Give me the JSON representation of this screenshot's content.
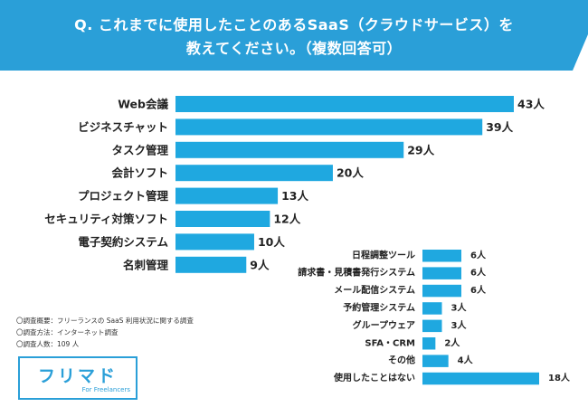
{
  "title": {
    "line1": "Q. これまでに使用したことのあるSaaS（クラウドサービス）を",
    "line2": "教えてください。（複数回答可）"
  },
  "colors": {
    "accent": "#1fa8e0",
    "header": "#2a9fd8"
  },
  "notes": [
    "〇調査概要：フリーランスの SaaS 利用状況に関する調査",
    "〇調査方法：インターネット調査",
    "〇調査人数：109 人"
  ],
  "logo": {
    "main": "フリマド",
    "sub": "For Freelancers"
  },
  "chart_data": [
    {
      "type": "bar",
      "orientation": "horizontal",
      "unit": "人",
      "categories": [
        "Web会議",
        "ビジネスチャット",
        "タスク管理",
        "会計ソフト",
        "プロジェクト管理",
        "セキュリティ対策ソフト",
        "電子契約システム",
        "名刺管理"
      ],
      "values": [
        43,
        39,
        29,
        20,
        13,
        12,
        10,
        9
      ],
      "xlim": [
        0,
        43
      ]
    },
    {
      "type": "bar",
      "orientation": "horizontal",
      "unit": "人",
      "categories": [
        "日程調整ツール",
        "請求書・見積書発行システム",
        "メール配信システム",
        "予約管理システム",
        "グループウェア",
        "SFA・CRM",
        "その他",
        "使用したことはない"
      ],
      "values": [
        6,
        6,
        6,
        3,
        3,
        2,
        4,
        18
      ],
      "xlim": [
        0,
        43
      ]
    }
  ]
}
